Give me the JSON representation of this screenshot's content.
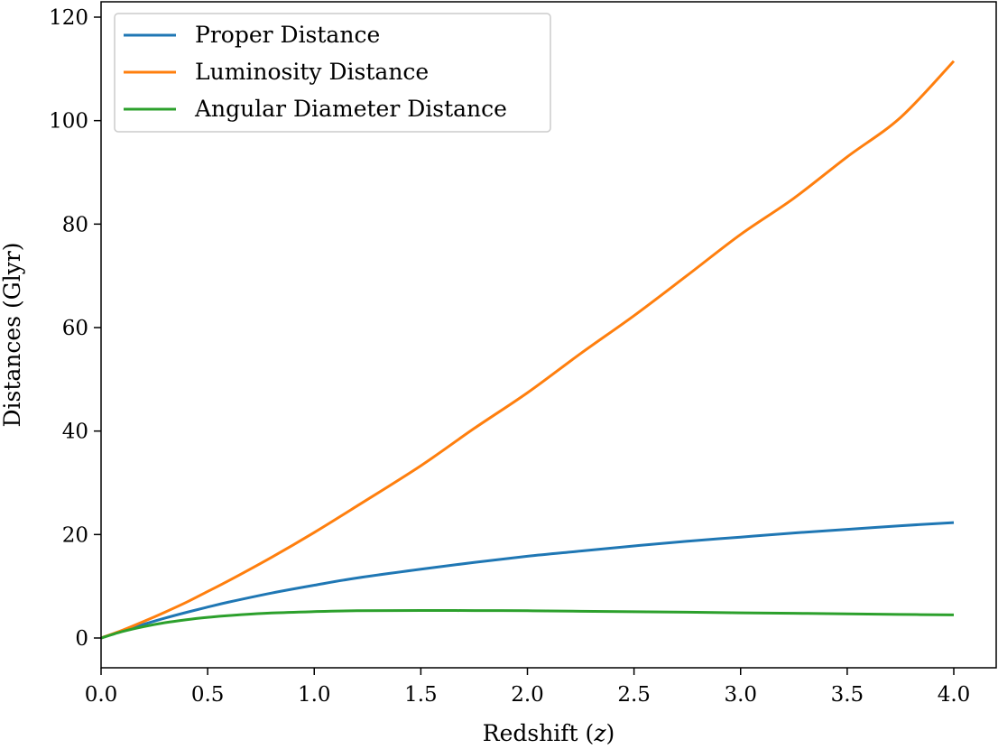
{
  "chart_data": {
    "type": "line",
    "title": "",
    "xlabel": "Redshift (z)",
    "ylabel": "Distances (Glyr)",
    "xlim": [
      0.0,
      4.2
    ],
    "ylim": [
      -6,
      121
    ],
    "xticks": [
      0.0,
      0.5,
      1.0,
      1.5,
      2.0,
      2.5,
      3.0,
      3.5,
      4.0
    ],
    "xtick_labels": [
      "0.0",
      "0.5",
      "1.0",
      "1.5",
      "2.0",
      "2.5",
      "3.0",
      "3.5",
      "4.0"
    ],
    "yticks": [
      0,
      20,
      40,
      60,
      80,
      100,
      120
    ],
    "ytick_labels": [
      "0",
      "20",
      "40",
      "60",
      "80",
      "100",
      "120"
    ],
    "grid": false,
    "legend": {
      "position": "top-left"
    },
    "x": [
      0.0,
      0.1,
      0.2,
      0.3,
      0.4,
      0.5,
      0.6,
      0.8,
      1.0,
      1.2,
      1.5,
      1.75,
      2.0,
      2.25,
      2.5,
      2.75,
      3.0,
      3.25,
      3.5,
      3.75,
      4.0
    ],
    "series": [
      {
        "name": "Proper Distance",
        "color": "#1f77b4",
        "values": [
          0.0,
          1.37,
          2.65,
          3.85,
          4.95,
          5.98,
          6.95,
          8.69,
          10.2,
          11.6,
          13.3,
          14.6,
          15.8,
          16.8,
          17.8,
          18.7,
          19.5,
          20.3,
          21.0,
          21.7,
          22.3
        ]
      },
      {
        "name": "Luminosity Distance",
        "color": "#ff7f0e",
        "values": [
          0.0,
          1.5,
          3.2,
          5.0,
          6.9,
          9.0,
          11.1,
          15.6,
          20.4,
          25.5,
          33.3,
          40.5,
          47.4,
          55.0,
          62.3,
          70.1,
          78.0,
          85.0,
          93.0,
          100.6,
          111.5
        ]
      },
      {
        "name": "Angular Diameter Distance",
        "color": "#2ca02c",
        "values": [
          0.0,
          1.25,
          2.2,
          2.96,
          3.54,
          3.99,
          4.34,
          4.83,
          5.1,
          5.27,
          5.32,
          5.3,
          5.27,
          5.17,
          5.09,
          4.99,
          4.87,
          4.77,
          4.67,
          4.56,
          4.46
        ]
      }
    ]
  }
}
